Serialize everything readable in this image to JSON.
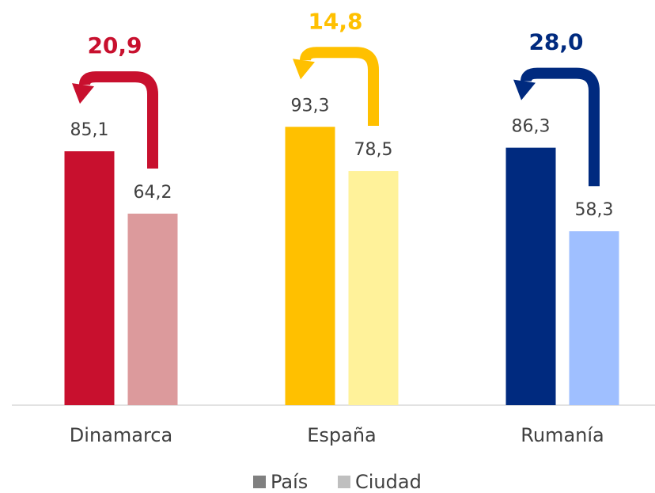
{
  "chart_data": {
    "type": "bar",
    "categories": [
      "Dinamarca",
      "España",
      "Rumanía"
    ],
    "series": [
      {
        "name": "País",
        "color": "#808080",
        "bar_colors": [
          "#c8102e",
          "#ffc000",
          "#002a7f"
        ],
        "values": [
          85.1,
          93.3,
          86.3
        ],
        "value_labels": [
          "85,1",
          "93,3",
          "86,3"
        ]
      },
      {
        "name": "Ciudad",
        "color": "#bfbfbf",
        "bar_colors": [
          "#dc9a9c",
          "#fff29a",
          "#9fbfff"
        ],
        "values": [
          64.2,
          78.5,
          58.3
        ],
        "value_labels": [
          "64,2",
          "78,5",
          "58,3"
        ]
      }
    ],
    "differences": {
      "values": [
        20.9,
        14.8,
        28.0
      ],
      "value_labels": [
        "20,9",
        "14,8",
        "28,0"
      ]
    },
    "ylim": [
      0,
      100
    ]
  }
}
